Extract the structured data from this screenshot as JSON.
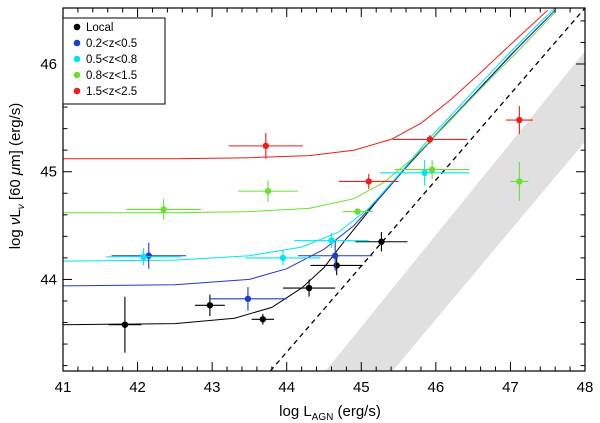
{
  "chart_data": {
    "type": "scatter",
    "xlabel": "log L_AGN (erg/s)",
    "xlabel_parts": {
      "main": "log L",
      "sub": "AGN",
      "unit": " (erg/s)"
    },
    "ylabel_parts": {
      "pre": "log ",
      "nu": "ν",
      "L": "L",
      "sub": "ν",
      "mid": " [60 ",
      "mu": "μ",
      "post": "m]  (erg/s)"
    },
    "xlim": [
      41,
      48
    ],
    "ylim": [
      43.15,
      46.52
    ],
    "xticks": [
      "41",
      "42",
      "43",
      "44",
      "45",
      "46",
      "47",
      "48"
    ],
    "yticks": [
      "44",
      "45",
      "46"
    ],
    "shaded_band": {
      "color": "#e0e0e0",
      "polygon": [
        [
          44.52,
          43.15
        ],
        [
          48.0,
          46.12
        ],
        [
          48.0,
          45.28
        ],
        [
          45.42,
          43.15
        ]
      ]
    },
    "dashed_line": {
      "points": [
        [
          43.78,
          43.15
        ],
        [
          48.0,
          46.52
        ]
      ]
    },
    "series": [
      {
        "name": "Local",
        "color": "#000000",
        "points": [
          {
            "x": 41.83,
            "y": 43.58,
            "xerr": 0.22,
            "yerr": 0.26
          },
          {
            "x": 42.97,
            "y": 43.76,
            "xerr": 0.2,
            "yerr": 0.1
          },
          {
            "x": 43.68,
            "y": 43.63,
            "xerr": 0.15,
            "yerr": 0.05
          },
          {
            "x": 44.3,
            "y": 43.92,
            "xerr": 0.35,
            "yerr": 0.08
          },
          {
            "x": 44.67,
            "y": 44.13,
            "xerr": 0.35,
            "yerr": 0.09
          },
          {
            "x": 45.27,
            "y": 44.35,
            "xerr": 0.35,
            "yerr": 0.09
          }
        ],
        "model": [
          [
            41.0,
            43.58
          ],
          [
            42.5,
            43.59
          ],
          [
            43.3,
            43.64
          ],
          [
            43.8,
            43.74
          ],
          [
            44.2,
            43.92
          ],
          [
            44.5,
            44.11
          ],
          [
            44.8,
            44.38
          ],
          [
            45.2,
            44.72
          ],
          [
            45.6,
            45.04
          ],
          [
            46.0,
            45.34
          ],
          [
            46.5,
            45.71
          ],
          [
            47.0,
            46.08
          ],
          [
            47.5,
            46.43
          ]
        ]
      },
      {
        "name": "0.2<z<0.5",
        "color": "#1a3ccd",
        "points": [
          {
            "x": 42.15,
            "y": 44.22,
            "xerr": 0.5,
            "yerr": 0.12
          },
          {
            "x": 43.48,
            "y": 43.82,
            "xerr": 0.52,
            "yerr": 0.11
          },
          {
            "x": 44.65,
            "y": 44.22,
            "xerr": 0.5,
            "yerr": 0.14
          }
        ],
        "model": [
          [
            41.0,
            43.94
          ],
          [
            42.5,
            43.95
          ],
          [
            43.5,
            44.0
          ],
          [
            44.0,
            44.1
          ],
          [
            44.5,
            44.28
          ],
          [
            44.9,
            44.5
          ],
          [
            45.3,
            44.8
          ],
          [
            45.7,
            45.12
          ],
          [
            46.1,
            45.42
          ],
          [
            46.6,
            45.78
          ],
          [
            47.1,
            46.15
          ],
          [
            47.6,
            46.5
          ]
        ]
      },
      {
        "name": "0.5<z<0.8",
        "color": "#00e5ee",
        "points": [
          {
            "x": 42.08,
            "y": 44.21,
            "xerr": 0.5,
            "yerr": 0.08
          },
          {
            "x": 43.95,
            "y": 44.2,
            "xerr": 0.5,
            "yerr": 0.07
          },
          {
            "x": 44.6,
            "y": 44.36,
            "xerr": 0.5,
            "yerr": 0.07
          },
          {
            "x": 45.85,
            "y": 44.99,
            "xerr": 0.6,
            "yerr": 0.12
          }
        ],
        "model": [
          [
            41.0,
            44.17
          ],
          [
            42.5,
            44.18
          ],
          [
            43.5,
            44.22
          ],
          [
            44.2,
            44.3
          ],
          [
            44.7,
            44.44
          ],
          [
            45.1,
            44.66
          ],
          [
            45.5,
            44.97
          ],
          [
            45.9,
            45.3
          ],
          [
            46.4,
            45.67
          ],
          [
            46.9,
            46.04
          ],
          [
            47.4,
            46.39
          ],
          [
            47.6,
            46.52
          ]
        ]
      },
      {
        "name": "0.8<z<1.5",
        "color": "#66e22e",
        "points": [
          {
            "x": 42.35,
            "y": 44.65,
            "xerr": 0.5,
            "yerr": 0.1
          },
          {
            "x": 43.75,
            "y": 44.82,
            "xerr": 0.4,
            "yerr": 0.1
          },
          {
            "x": 44.95,
            "y": 44.63,
            "xerr": 0.2,
            "yerr": 0.03
          },
          {
            "x": 45.95,
            "y": 45.02,
            "xerr": 0.5,
            "yerr": 0.09
          },
          {
            "x": 47.12,
            "y": 44.91,
            "xerr": 0.12,
            "yerr": 0.18
          }
        ],
        "model": [
          [
            41.0,
            44.62
          ],
          [
            42.5,
            44.62
          ],
          [
            43.5,
            44.63
          ],
          [
            44.3,
            44.66
          ],
          [
            44.9,
            44.75
          ],
          [
            45.3,
            44.9
          ],
          [
            45.7,
            45.13
          ],
          [
            46.1,
            45.41
          ],
          [
            46.6,
            45.77
          ],
          [
            47.1,
            46.12
          ],
          [
            47.6,
            46.48
          ]
        ]
      },
      {
        "name": "1.5<z<2.5",
        "color": "#ee1c1c",
        "points": [
          {
            "x": 43.72,
            "y": 45.24,
            "xerr": 0.5,
            "yerr": 0.12
          },
          {
            "x": 45.1,
            "y": 44.91,
            "xerr": 0.4,
            "yerr": 0.07
          },
          {
            "x": 45.92,
            "y": 45.3,
            "xerr": 0.5,
            "yerr": 0.04
          },
          {
            "x": 47.12,
            "y": 45.48,
            "xerr": 0.18,
            "yerr": 0.13
          }
        ],
        "model": [
          [
            41.0,
            45.12
          ],
          [
            42.5,
            45.12
          ],
          [
            43.5,
            45.13
          ],
          [
            44.3,
            45.15
          ],
          [
            44.9,
            45.2
          ],
          [
            45.4,
            45.3
          ],
          [
            45.8,
            45.45
          ],
          [
            46.2,
            45.67
          ],
          [
            46.6,
            45.92
          ],
          [
            47.0,
            46.18
          ],
          [
            47.5,
            46.5
          ]
        ]
      }
    ]
  }
}
